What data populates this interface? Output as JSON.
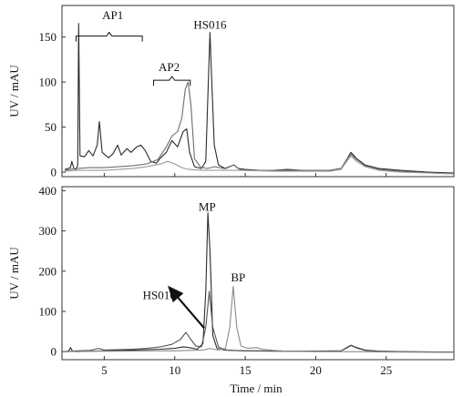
{
  "chart_data": [
    {
      "type": "line",
      "panel": "top",
      "ylabel": "UV / mAU",
      "xlabel": "",
      "xlim": [
        2.0,
        29.8
      ],
      "ylim": [
        -5,
        185
      ],
      "x_ticks": [
        5,
        10,
        15,
        20,
        25
      ],
      "y_ticks": [
        0,
        50,
        100,
        150
      ],
      "grid": false,
      "series": [
        {
          "color": "#2b2b2b",
          "points": [
            [
              2.2,
              3
            ],
            [
              2.6,
              5
            ],
            [
              2.7,
              12
            ],
            [
              2.85,
              4
            ],
            [
              3.0,
              3
            ],
            [
              3.12,
              8
            ],
            [
              3.18,
              165
            ],
            [
              3.28,
              18
            ],
            [
              3.6,
              17
            ],
            [
              3.9,
              24
            ],
            [
              4.2,
              18
            ],
            [
              4.5,
              30
            ],
            [
              4.65,
              56
            ],
            [
              4.85,
              22
            ],
            [
              5.3,
              16
            ],
            [
              5.6,
              20
            ],
            [
              5.95,
              30
            ],
            [
              6.2,
              19
            ],
            [
              6.6,
              26
            ],
            [
              6.9,
              22
            ],
            [
              7.3,
              28
            ],
            [
              7.6,
              30
            ],
            [
              7.9,
              24
            ],
            [
              8.3,
              12
            ],
            [
              8.7,
              10
            ],
            [
              9.0,
              16
            ],
            [
              9.4,
              22
            ],
            [
              9.8,
              35
            ],
            [
              10.2,
              28
            ],
            [
              10.6,
              45
            ],
            [
              10.85,
              48
            ],
            [
              11.05,
              22
            ],
            [
              11.4,
              6
            ],
            [
              11.9,
              4
            ],
            [
              12.2,
              12
            ],
            [
              12.4,
              110
            ],
            [
              12.5,
              155
            ],
            [
              12.6,
              110
            ],
            [
              12.8,
              30
            ],
            [
              13.1,
              8
            ],
            [
              13.6,
              4
            ],
            [
              14.2,
              8
            ],
            [
              14.5,
              4
            ],
            [
              15,
              3
            ],
            [
              16,
              2
            ],
            [
              17,
              2
            ],
            [
              18,
              3
            ],
            [
              19,
              2
            ],
            [
              20,
              2
            ],
            [
              21,
              2
            ],
            [
              21.8,
              4
            ],
            [
              22.2,
              14
            ],
            [
              22.5,
              22
            ],
            [
              22.9,
              15
            ],
            [
              23.5,
              8
            ],
            [
              24.5,
              4
            ],
            [
              26,
              2
            ],
            [
              28,
              0
            ],
            [
              29.8,
              -1
            ]
          ]
        },
        {
          "color": "#6e6e6e",
          "points": [
            [
              2.2,
              2
            ],
            [
              3.0,
              4
            ],
            [
              4,
              5
            ],
            [
              5,
              5
            ],
            [
              6,
              6
            ],
            [
              7,
              7
            ],
            [
              8,
              9
            ],
            [
              8.8,
              14
            ],
            [
              9.4,
              28
            ],
            [
              9.8,
              40
            ],
            [
              10.2,
              45
            ],
            [
              10.5,
              60
            ],
            [
              10.75,
              92
            ],
            [
              10.95,
              100
            ],
            [
              11.15,
              75
            ],
            [
              11.4,
              15
            ],
            [
              11.8,
              6
            ],
            [
              12.3,
              4
            ],
            [
              12.8,
              6
            ],
            [
              13.5,
              4
            ],
            [
              14.2,
              8
            ],
            [
              14.6,
              3
            ],
            [
              15,
              2
            ],
            [
              17,
              2
            ],
            [
              19,
              2
            ],
            [
              21,
              2
            ],
            [
              21.8,
              4
            ],
            [
              22.2,
              14
            ],
            [
              22.5,
              20
            ],
            [
              22.9,
              14
            ],
            [
              23.5,
              7
            ],
            [
              24.5,
              3
            ],
            [
              26,
              1
            ],
            [
              28,
              -1
            ],
            [
              29.8,
              -2
            ]
          ]
        },
        {
          "color": "#9a9a9a",
          "points": [
            [
              2.2,
              1
            ],
            [
              3,
              2
            ],
            [
              4,
              2
            ],
            [
              5,
              2
            ],
            [
              6,
              3
            ],
            [
              7,
              4
            ],
            [
              8,
              6
            ],
            [
              9,
              9
            ],
            [
              9.5,
              12
            ],
            [
              10,
              9
            ],
            [
              10.5,
              5
            ],
            [
              11,
              3
            ],
            [
              12,
              2
            ],
            [
              13,
              2
            ],
            [
              14,
              2
            ],
            [
              15,
              2
            ],
            [
              17,
              1
            ],
            [
              19,
              1
            ],
            [
              21,
              1
            ],
            [
              21.8,
              3
            ],
            [
              22.2,
              12
            ],
            [
              22.5,
              18
            ],
            [
              22.9,
              12
            ],
            [
              23.5,
              6
            ],
            [
              24.5,
              2
            ],
            [
              26,
              0
            ],
            [
              28,
              -1
            ],
            [
              29.8,
              -2
            ]
          ]
        }
      ],
      "annotations": [
        {
          "text": "AP1",
          "x": 5.6,
          "y": 170
        },
        {
          "text": "AP2",
          "x": 9.6,
          "y": 112
        },
        {
          "text": "HS016",
          "x": 12.5,
          "y": 159
        }
      ],
      "brackets": [
        {
          "label": "AP1",
          "x_start": 3.0,
          "x_end": 7.7,
          "y": 151
        },
        {
          "label": "AP2",
          "x_start": 8.5,
          "x_end": 11.1,
          "y": 102
        }
      ]
    },
    {
      "type": "line",
      "panel": "bottom",
      "ylabel": "UV / mAU",
      "xlabel": "Time / min",
      "xlim": [
        2.0,
        29.8
      ],
      "ylim": [
        -20,
        410
      ],
      "x_ticks": [
        5,
        10,
        15,
        20,
        25
      ],
      "y_ticks": [
        0,
        100,
        200,
        300,
        400
      ],
      "grid": false,
      "series": [
        {
          "color": "#2b2b2b",
          "points": [
            [
              2.2,
              0
            ],
            [
              2.5,
              2
            ],
            [
              2.6,
              10
            ],
            [
              2.75,
              1
            ],
            [
              3,
              0
            ],
            [
              4,
              1
            ],
            [
              5,
              2
            ],
            [
              6,
              3
            ],
            [
              7,
              4
            ],
            [
              8,
              5
            ],
            [
              9,
              6
            ],
            [
              10,
              8
            ],
            [
              10.6,
              12
            ],
            [
              11,
              10
            ],
            [
              11.6,
              6
            ],
            [
              12.0,
              20
            ],
            [
              12.2,
              150
            ],
            [
              12.35,
              345
            ],
            [
              12.5,
              250
            ],
            [
              12.7,
              40
            ],
            [
              13,
              8
            ],
            [
              13.5,
              4
            ],
            [
              14,
              3
            ],
            [
              15,
              2
            ],
            [
              16,
              2
            ],
            [
              18,
              1
            ],
            [
              20,
              1
            ],
            [
              21.8,
              2
            ],
            [
              22.2,
              10
            ],
            [
              22.5,
              16
            ],
            [
              22.9,
              10
            ],
            [
              23.5,
              4
            ],
            [
              24.5,
              1
            ],
            [
              26,
              0
            ],
            [
              28,
              -1
            ],
            [
              29.8,
              -1
            ]
          ]
        },
        {
          "color": "#555555",
          "points": [
            [
              2.2,
              0
            ],
            [
              3,
              2
            ],
            [
              4,
              3
            ],
            [
              4.6,
              8
            ],
            [
              5,
              4
            ],
            [
              6,
              5
            ],
            [
              7,
              6
            ],
            [
              8,
              8
            ],
            [
              9,
              12
            ],
            [
              9.8,
              18
            ],
            [
              10.4,
              30
            ],
            [
              10.8,
              48
            ],
            [
              11.1,
              32
            ],
            [
              11.5,
              14
            ],
            [
              11.9,
              12
            ],
            [
              12.2,
              60
            ],
            [
              12.45,
              150
            ],
            [
              12.7,
              60
            ],
            [
              13.1,
              12
            ],
            [
              13.5,
              5
            ],
            [
              14,
              3
            ],
            [
              15,
              2
            ],
            [
              17,
              1
            ],
            [
              19,
              1
            ],
            [
              21.8,
              2
            ],
            [
              22.2,
              9
            ],
            [
              22.5,
              15
            ],
            [
              22.9,
              9
            ],
            [
              23.5,
              3
            ],
            [
              25,
              0
            ],
            [
              29.8,
              -1
            ]
          ]
        },
        {
          "color": "#8a8a8a",
          "points": [
            [
              2.2,
              0
            ],
            [
              4,
              1
            ],
            [
              6,
              1
            ],
            [
              8,
              2
            ],
            [
              10,
              2
            ],
            [
              11,
              3
            ],
            [
              12,
              4
            ],
            [
              12.5,
              8
            ],
            [
              13,
              4
            ],
            [
              13.6,
              8
            ],
            [
              13.9,
              60
            ],
            [
              14.15,
              162
            ],
            [
              14.4,
              60
            ],
            [
              14.7,
              14
            ],
            [
              15.2,
              8
            ],
            [
              15.8,
              10
            ],
            [
              16.2,
              6
            ],
            [
              17,
              3
            ],
            [
              18,
              1
            ],
            [
              20,
              0
            ],
            [
              22,
              0
            ],
            [
              23,
              0
            ],
            [
              25,
              -1
            ],
            [
              29.8,
              -2
            ]
          ]
        }
      ],
      "annotations": [
        {
          "text": "MP",
          "x": 12.3,
          "y": 350
        },
        {
          "text": "BP",
          "x": 14.5,
          "y": 175
        },
        {
          "text": "HS016",
          "x": 8.9,
          "y": 130
        }
      ],
      "arrow": {
        "from": [
          12.1,
          58
        ],
        "to": [
          9.6,
          160
        ]
      }
    }
  ]
}
